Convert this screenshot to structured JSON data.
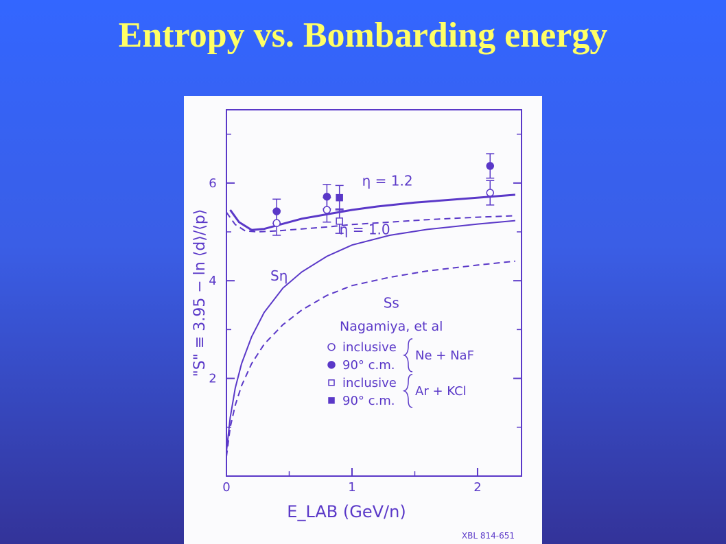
{
  "slide": {
    "title": "Entropy vs. Bombarding energy"
  },
  "colors": {
    "background_top": "#3366ff",
    "background_bottom": "#333399",
    "title": "#ffff66",
    "ink": "#5a38c8",
    "paper": "#fbfbfd"
  },
  "chart_data": {
    "type": "line",
    "title": "",
    "xlabel": "E_LAB (GeV/n)",
    "ylabel": "\"S\" ≡ 3.95 − ln ⟨d⟩/⟨p⟩",
    "xlim": [
      0,
      2.35
    ],
    "ylim": [
      0,
      7.5
    ],
    "x_ticks": [
      0,
      1,
      2
    ],
    "y_ticks": [
      2,
      4,
      6
    ],
    "grid": false,
    "legend_title": "Nagamiya, et al",
    "legend_entries": [
      {
        "marker": "open-circle",
        "label": "inclusive"
      },
      {
        "marker": "filled-circle",
        "label": "90° c.m."
      },
      {
        "marker": "open-square",
        "label": "inclusive"
      },
      {
        "marker": "filled-square",
        "label": "90° c.m."
      }
    ],
    "legend_groups": [
      "Ne + NaF",
      "Ar + KCl"
    ],
    "series": [
      {
        "name": "η = 1.2",
        "style": "solid-thick",
        "x": [
          0.03,
          0.1,
          0.2,
          0.3,
          0.4,
          0.6,
          0.8,
          1.0,
          1.2,
          1.5,
          1.8,
          2.1,
          2.3
        ],
        "y": [
          5.45,
          5.2,
          5.04,
          5.06,
          5.13,
          5.27,
          5.36,
          5.45,
          5.52,
          5.6,
          5.66,
          5.72,
          5.76
        ]
      },
      {
        "name": "η = 1.0",
        "style": "dashed",
        "x": [
          0.0,
          0.07,
          0.15,
          0.25,
          0.4,
          0.6,
          0.8,
          1.0,
          1.3,
          1.6,
          2.0,
          2.3
        ],
        "y": [
          5.4,
          5.15,
          5.02,
          5.0,
          5.02,
          5.06,
          5.1,
          5.15,
          5.2,
          5.25,
          5.3,
          5.33
        ]
      },
      {
        "name": "Sη",
        "style": "solid",
        "x": [
          0.0,
          0.03,
          0.07,
          0.12,
          0.2,
          0.3,
          0.45,
          0.6,
          0.8,
          1.0,
          1.3,
          1.6,
          2.0,
          2.3
        ],
        "y": [
          0.5,
          1.2,
          1.8,
          2.3,
          2.85,
          3.35,
          3.85,
          4.18,
          4.5,
          4.73,
          4.93,
          5.05,
          5.16,
          5.23
        ]
      },
      {
        "name": "Ss",
        "style": "dashed",
        "x": [
          0.0,
          0.03,
          0.07,
          0.12,
          0.2,
          0.3,
          0.45,
          0.6,
          0.8,
          1.0,
          1.3,
          1.6,
          2.0,
          2.3
        ],
        "y": [
          0.4,
          1.0,
          1.45,
          1.85,
          2.3,
          2.7,
          3.1,
          3.4,
          3.7,
          3.9,
          4.07,
          4.2,
          4.32,
          4.4
        ]
      }
    ],
    "points": [
      {
        "group": "Ne + NaF",
        "marker": "filled-circle",
        "x": 0.4,
        "y": 5.42,
        "err": 0.25
      },
      {
        "group": "Ne + NaF",
        "marker": "open-circle",
        "x": 0.4,
        "y": 5.18,
        "err": 0.25
      },
      {
        "group": "Ne + NaF",
        "marker": "filled-circle",
        "x": 0.8,
        "y": 5.72,
        "err": 0.25
      },
      {
        "group": "Ne + NaF",
        "marker": "open-circle",
        "x": 0.8,
        "y": 5.45,
        "err": 0.25
      },
      {
        "group": "Ar + KCl",
        "marker": "filled-square",
        "x": 0.9,
        "y": 5.7,
        "err": 0.25
      },
      {
        "group": "Ar + KCl",
        "marker": "open-square",
        "x": 0.9,
        "y": 5.22,
        "err": 0.25
      },
      {
        "group": "Ne + NaF",
        "marker": "filled-circle",
        "x": 2.1,
        "y": 6.35,
        "err": 0.25
      },
      {
        "group": "Ne + NaF",
        "marker": "open-circle",
        "x": 2.1,
        "y": 5.8,
        "err": 0.25
      }
    ],
    "annotations": [
      "η = 1.2",
      "η = 1.0",
      "Sη",
      "Ss"
    ],
    "credit": "XBL 814-651"
  }
}
